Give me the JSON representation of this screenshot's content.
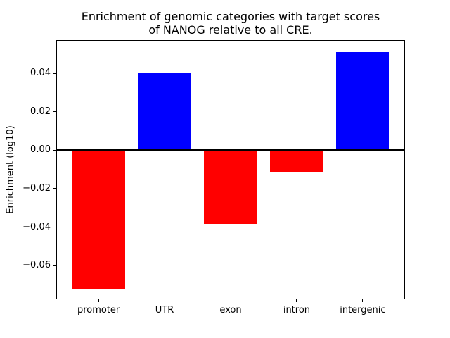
{
  "chart_data": {
    "type": "bar",
    "title": "Enrichment of genomic categories with target scores\nof NANOG relative to all CRE.",
    "xlabel": "",
    "ylabel": "Enrichment (log10)",
    "categories": [
      "promoter",
      "UTR",
      "exon",
      "intron",
      "intergenic"
    ],
    "values": [
      -0.072,
      0.0406,
      -0.0385,
      -0.0113,
      0.051
    ],
    "bar_colors": [
      "#ff0000",
      "#0000ff",
      "#ff0000",
      "#ff0000",
      "#0000ff"
    ],
    "positive_color": "#0000ff",
    "negative_color": "#ff0000",
    "ylim": [
      -0.0776,
      0.0574
    ],
    "xlim": [
      -0.64,
      4.64
    ],
    "yticks": [
      0.04,
      0.02,
      0,
      -0.02,
      -0.04,
      -0.06
    ],
    "ytick_labels": [
      "0.04",
      "0.02",
      "0.00",
      "−0.02",
      "−0.04",
      "−0.06"
    ],
    "bar_width": 0.8,
    "zero_line": true,
    "grid": false,
    "legend": false,
    "axis_color": "#000000",
    "background": "#ffffff"
  }
}
